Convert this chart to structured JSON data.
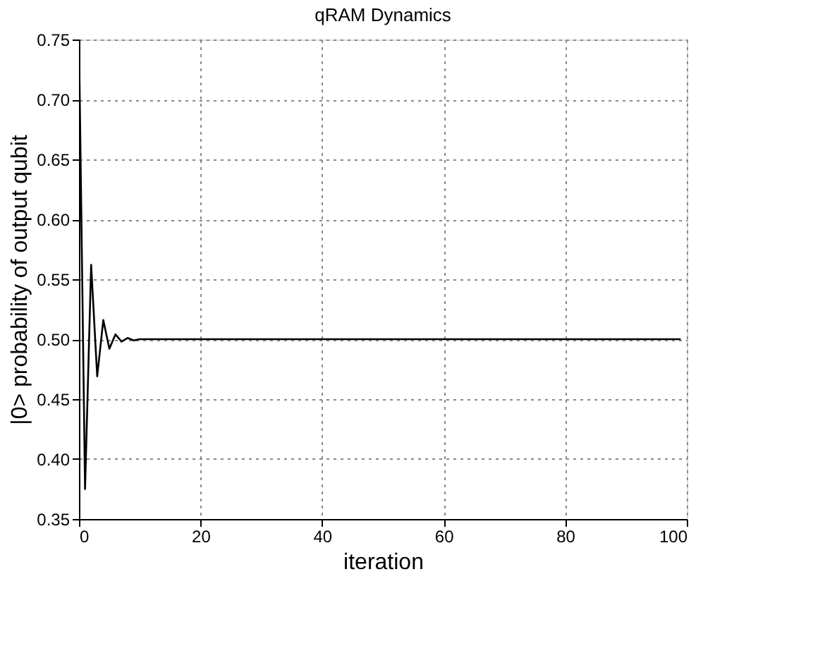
{
  "chart_data": {
    "type": "line",
    "title": "qRAM Dynamics",
    "xlabel": "iteration",
    "ylabel": "|0> probability of output qubit",
    "x": [
      0,
      1,
      2,
      3,
      4,
      5,
      6,
      7,
      8,
      9,
      10,
      99
    ],
    "series": [
      {
        "color": "#000000",
        "values": [
          0.75,
          0.375,
          0.562,
          0.469,
          0.516,
          0.492,
          0.504,
          0.498,
          0.501,
          0.499,
          0.5,
          0.5
        ]
      }
    ],
    "xlim": [
      0,
      100
    ],
    "xticks": [
      0,
      20,
      40,
      60,
      80,
      100
    ],
    "ylim": [
      0.35,
      0.75
    ],
    "yticks": [
      0.35,
      {
        "value": 0.4,
        "label": "0.40"
      },
      0.45,
      {
        "value": 0.5,
        "label": "0.50"
      },
      0.55,
      {
        "value": 0.6,
        "label": "0.60"
      },
      0.65,
      {
        "value": 0.7,
        "label": "0.70"
      },
      0.75
    ],
    "grid": true,
    "line_style": "solid",
    "marker": "none"
  }
}
